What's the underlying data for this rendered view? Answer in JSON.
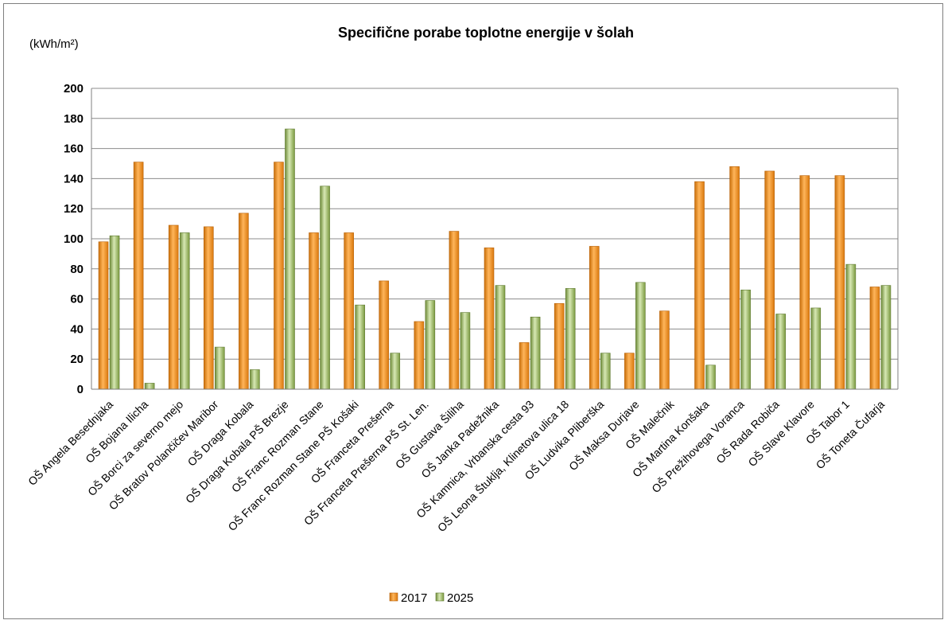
{
  "chart_data": {
    "type": "bar",
    "title": "Specifične porabe toplotne energije v šolah",
    "ylabel": "(kWh/m²)",
    "xlabel": "",
    "ylim": [
      0,
      200
    ],
    "yticks": [
      0,
      20,
      40,
      60,
      80,
      100,
      120,
      140,
      160,
      180,
      200
    ],
    "grid": true,
    "legend_position": "bottom",
    "categories": [
      "OŠ Angela Besednjaka",
      "OŠ Bojana Ilicha",
      "OŠ Borci za severno mejo",
      "OŠ Bratov Polančičev Maribor",
      "OŠ Draga Kobala",
      "OŠ Draga Kobala PŠ Brezje",
      "OŠ Franc Rozman Stane",
      "OŠ Franc Rozman Stane PŠ Košaki",
      "OŠ Franceta Prešerna",
      "OŠ Franceta Prešerna PŠ St. Len.",
      "OŠ Gustava Šiliha",
      "OŠ Janka Padežnika",
      "OŠ Kamnica, Vrbanska cesta 93",
      "OŠ Leona Štuklja, Klinetova ulica 18",
      "OŠ Ludvika Pliberška",
      "OŠ Maksa Durjave",
      "OŠ Malečnik",
      "OŠ Martina Konšaka",
      "OŠ Prežihovega Voranca",
      "OŠ Rada Robiča",
      "OŠ Slave Klavore",
      "OŠ Tabor 1",
      "OŠ Toneta Čufarja"
    ],
    "series": [
      {
        "name": "2017",
        "color": "#f59a23",
        "values": [
          98,
          151,
          109,
          108,
          117,
          151,
          104,
          104,
          72,
          45,
          105,
          94,
          31,
          57,
          95,
          24,
          52,
          138,
          148,
          145,
          142,
          142,
          68
        ]
      },
      {
        "name": "2025",
        "color": "#9bbb59",
        "values": [
          102,
          4,
          104,
          28,
          13,
          173,
          135,
          56,
          24,
          59,
          51,
          69,
          48,
          67,
          24,
          71,
          0,
          16,
          66,
          50,
          54,
          83,
          69
        ]
      }
    ]
  }
}
